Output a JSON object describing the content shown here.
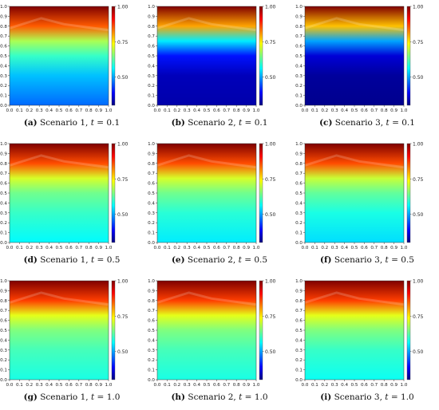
{
  "figure": {
    "panels": [
      {
        "letter": "(a)",
        "text": "Scenario 1,",
        "tvar": "t",
        "eq": "=",
        "tval": "0.1"
      },
      {
        "letter": "(b)",
        "text": "Scenario 2,",
        "tvar": "t",
        "eq": "=",
        "tval": "0.1"
      },
      {
        "letter": "(c)",
        "text": "Scenario 3,",
        "tvar": "t",
        "eq": "=",
        "tval": "0.1"
      },
      {
        "letter": "(d)",
        "text": "Scenario 1,",
        "tvar": "t",
        "eq": "=",
        "tval": "0.5"
      },
      {
        "letter": "(e)",
        "text": "Scenario 2,",
        "tvar": "t",
        "eq": "=",
        "tval": "0.5"
      },
      {
        "letter": "(f)",
        "text": "Scenario 3,",
        "tvar": "t",
        "eq": "=",
        "tval": "0.5"
      },
      {
        "letter": "(g)",
        "text": "Scenario 1,",
        "tvar": "t",
        "eq": "=",
        "tval": "1.0"
      },
      {
        "letter": "(h)",
        "text": "Scenario 2,",
        "tvar": "t",
        "eq": "=",
        "tval": "1.0"
      },
      {
        "letter": "(i)",
        "text": "Scenario 3,",
        "tvar": "t",
        "eq": "=",
        "tval": "1.0"
      }
    ]
  },
  "chart_data": {
    "type": "heatmap",
    "colormap": "jet",
    "colors": [
      "#00007f",
      "#0000ff",
      "#007fff",
      "#00ffff",
      "#7fff7f",
      "#ffff00",
      "#ff7f00",
      "#ff0000",
      "#7f0000"
    ],
    "xlim": [
      0,
      1
    ],
    "ylim": [
      0,
      1
    ],
    "xticks": [
      "0.0",
      "0.1",
      "0.2",
      "0.3",
      "0.4",
      "0.5",
      "0.6",
      "0.7",
      "0.8",
      "0.9",
      "1.0"
    ],
    "yticks": [
      "0.0",
      "0.1",
      "0.2",
      "0.3",
      "0.4",
      "0.5",
      "0.6",
      "0.7",
      "0.8",
      "0.9",
      "1.0"
    ],
    "colorbar": {
      "range": [
        0.3,
        1.0
      ],
      "ticks": [
        "0.50",
        "0.75",
        "1.00"
      ]
    },
    "panels": [
      {
        "scenario": 1,
        "t": 0.1,
        "y_levels": [
          0.0,
          0.3,
          0.5,
          0.65,
          0.8,
          1.0
        ],
        "values": [
          0.46,
          0.52,
          0.6,
          0.68,
          0.85,
          1.0
        ]
      },
      {
        "scenario": 2,
        "t": 0.1,
        "y_levels": [
          0.0,
          0.3,
          0.5,
          0.65,
          0.8,
          1.0
        ],
        "values": [
          0.33,
          0.34,
          0.4,
          0.55,
          0.8,
          1.0
        ]
      },
      {
        "scenario": 3,
        "t": 0.1,
        "y_levels": [
          0.0,
          0.3,
          0.5,
          0.65,
          0.8,
          1.0
        ],
        "values": [
          0.31,
          0.32,
          0.36,
          0.5,
          0.78,
          1.0
        ]
      },
      {
        "scenario": 1,
        "t": 0.5,
        "y_levels": [
          0.0,
          0.3,
          0.5,
          0.65,
          0.8,
          1.0
        ],
        "values": [
          0.56,
          0.6,
          0.64,
          0.71,
          0.86,
          1.0
        ]
      },
      {
        "scenario": 2,
        "t": 0.5,
        "y_levels": [
          0.0,
          0.3,
          0.5,
          0.65,
          0.8,
          1.0
        ],
        "values": [
          0.55,
          0.59,
          0.64,
          0.71,
          0.86,
          1.0
        ]
      },
      {
        "scenario": 3,
        "t": 0.5,
        "y_levels": [
          0.0,
          0.3,
          0.5,
          0.65,
          0.8,
          1.0
        ],
        "values": [
          0.54,
          0.58,
          0.63,
          0.7,
          0.86,
          1.0
        ]
      },
      {
        "scenario": 1,
        "t": 1.0,
        "y_levels": [
          0.0,
          0.3,
          0.5,
          0.65,
          0.8,
          1.0
        ],
        "values": [
          0.58,
          0.61,
          0.65,
          0.72,
          0.87,
          1.0
        ]
      },
      {
        "scenario": 2,
        "t": 1.0,
        "y_levels": [
          0.0,
          0.3,
          0.5,
          0.65,
          0.8,
          1.0
        ],
        "values": [
          0.58,
          0.61,
          0.65,
          0.72,
          0.87,
          1.0
        ]
      },
      {
        "scenario": 3,
        "t": 1.0,
        "y_levels": [
          0.0,
          0.3,
          0.5,
          0.65,
          0.8,
          1.0
        ],
        "values": [
          0.57,
          0.6,
          0.65,
          0.72,
          0.87,
          1.0
        ]
      }
    ]
  }
}
